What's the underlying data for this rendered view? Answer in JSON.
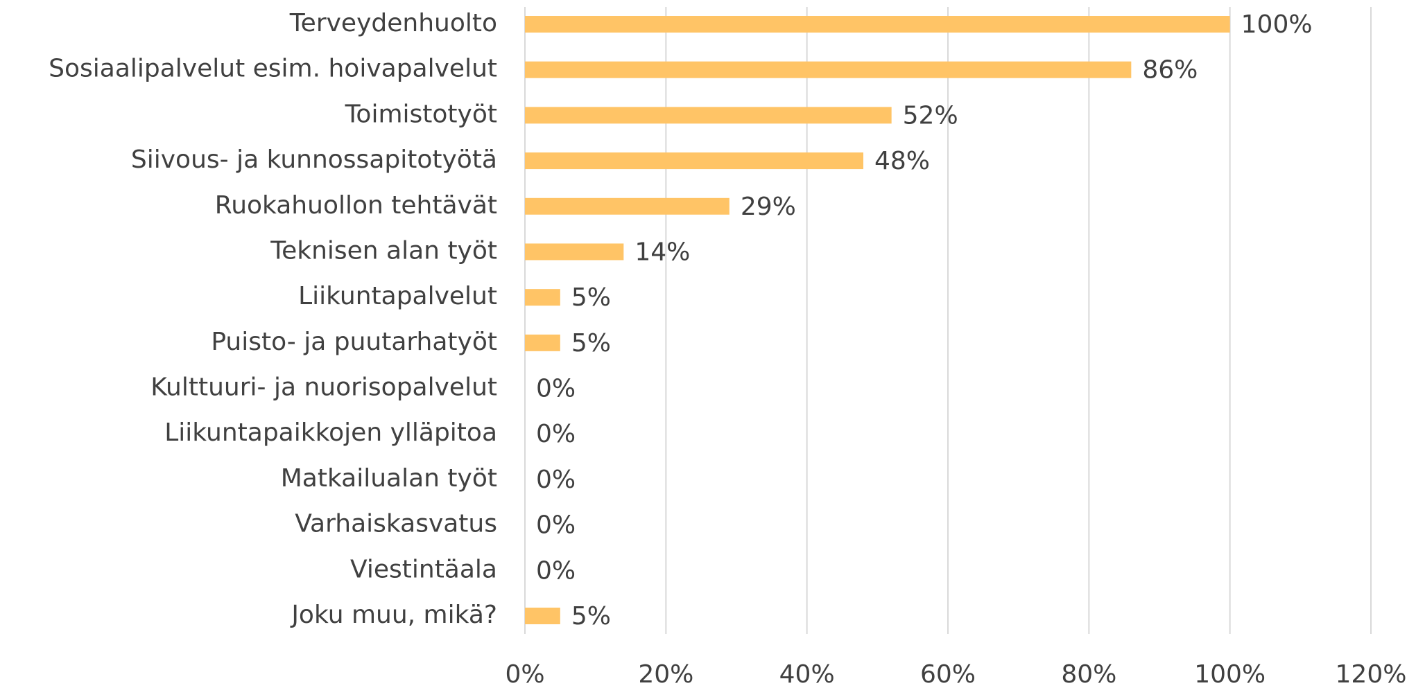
{
  "chart_data": {
    "type": "barh",
    "categories": [
      "Terveydenhuolto",
      "Sosiaalipalvelut esim. hoivapalvelut",
      "Toimistotyöt",
      "Siivous- ja kunnossapitotyötä",
      "Ruokahuollon tehtävät",
      "Teknisen alan työt",
      "Liikuntapalvelut",
      "Puisto- ja puutarhatyöt",
      "Kulttuuri- ja nuorisopalvelut",
      "Liikuntapaikkojen ylläpitoa",
      "Matkailualan työt",
      "Varhaiskasvatus",
      "Viestintäala",
      "Joku muu, mikä?"
    ],
    "values": [
      100,
      86,
      52,
      48,
      29,
      14,
      5,
      5,
      0,
      0,
      0,
      0,
      0,
      5
    ],
    "value_labels": [
      "100%",
      "86%",
      "52%",
      "48%",
      "29%",
      "14%",
      "5%",
      "5%",
      "0%",
      "0%",
      "0%",
      "0%",
      "0%",
      "5%"
    ],
    "color": "#ffc466",
    "xlim": [
      0,
      120
    ],
    "xticks": [
      {
        "value": 0,
        "label": "0%"
      },
      {
        "value": 20,
        "label": "20%"
      },
      {
        "value": 40,
        "label": "40%"
      },
      {
        "value": 60,
        "label": "60%"
      },
      {
        "value": 80,
        "label": "80%"
      },
      {
        "value": 100,
        "label": "100%"
      },
      {
        "value": 120,
        "label": "120%"
      }
    ],
    "grid": true
  }
}
